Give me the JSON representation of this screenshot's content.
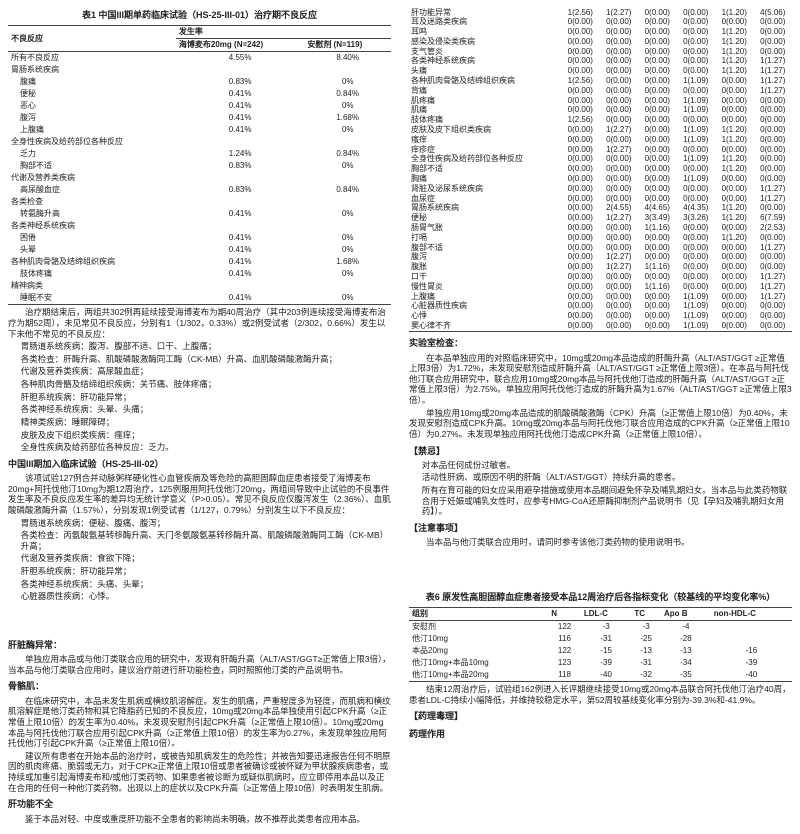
{
  "t1": {
    "title": "表1 中国III期单药临床试验（HS-25-III-01）治疗期不良反应",
    "h1": "不良反应",
    "h2": "发生率",
    "c1": "海博麦布20mg (N=242)",
    "c2": "安慰剂 (N=119)",
    "rows": [
      {
        "name": "所有不良反应",
        "ind": 0,
        "a": "4.55%",
        "b": "8.40%",
        "bold": true
      },
      {
        "name": "胃肠系统疾病",
        "ind": 0,
        "a": "",
        "b": ""
      },
      {
        "name": "腹痛",
        "ind": 1,
        "a": "0.83%",
        "b": "0%"
      },
      {
        "name": "便秘",
        "ind": 1,
        "a": "0.41%",
        "b": "0.84%"
      },
      {
        "name": "恶心",
        "ind": 1,
        "a": "0.41%",
        "b": "0%"
      },
      {
        "name": "腹泻",
        "ind": 1,
        "a": "0.41%",
        "b": "1.68%"
      },
      {
        "name": "上腹痛",
        "ind": 1,
        "a": "0.41%",
        "b": "0%"
      },
      {
        "name": "全身性疾病及给药部位各种反应",
        "ind": 0,
        "a": "",
        "b": ""
      },
      {
        "name": "乏力",
        "ind": 1,
        "a": "1.24%",
        "b": "0.84%"
      },
      {
        "name": "胸部不适",
        "ind": 1,
        "a": "0.83%",
        "b": "0%"
      },
      {
        "name": "代谢及营养类疾病",
        "ind": 0,
        "a": "",
        "b": ""
      },
      {
        "name": "高尿酸血症",
        "ind": 1,
        "a": "0.83%",
        "b": "0.84%"
      },
      {
        "name": "各类检查",
        "ind": 0,
        "a": "",
        "b": ""
      },
      {
        "name": "转氨酶升高",
        "ind": 1,
        "a": "0.41%",
        "b": "0%"
      },
      {
        "name": "各类神经系统疾病",
        "ind": 0,
        "a": "",
        "b": ""
      },
      {
        "name": "困倦",
        "ind": 1,
        "a": "0.41%",
        "b": "0%"
      },
      {
        "name": "头晕",
        "ind": 1,
        "a": "0.41%",
        "b": "0%"
      },
      {
        "name": "各种肌肉骨骼及结缔组织疾病",
        "ind": 0,
        "a": "0.41%",
        "b": "1.68%"
      },
      {
        "name": "肢体疼痛",
        "ind": 1,
        "a": "0.41%",
        "b": "0%"
      },
      {
        "name": "精神病类",
        "ind": 0,
        "a": "",
        "b": ""
      },
      {
        "name": "睡眠不安",
        "ind": 1,
        "a": "0.41%",
        "b": "0%"
      }
    ]
  },
  "para1": "治疗期结束后，两组共302例再延续接受海博麦布为期40周治疗（其中203例连续接受海博麦布治疗为期52周），未见常见不良反应，分别有1（1/302，0.33%）或2例受试者（2/302，0.66%）发生以下未他不常见的不良反应：",
  "list1": [
    "胃肠道系统疾病：腹泻、腹部不适、口干、上腹痛；",
    "各类检查：肝酶升高、肌酸磷酸激酶同工酶（CK-MB）升高、血肌酸磷酸激酶升高；",
    "代谢及营养类疾病：高尿酸血症；",
    "各种肌肉骨骼及结缔组织疾病：关节痛、肢体疼痛；",
    "肝胆系统疾病：肝功能异常；",
    "各类神经系统疾病：头晕、头痛；",
    "精神类疾病：睡眠障碍；",
    "皮肤及皮下组织类疾病：瘙痒；",
    "全身性疾病及给药部位各种反应：乏力。"
  ],
  "h02": "中国III期加入临床试验（HS-25-III-02）",
  "para2": "该项试验127例合并动脉粥样硬化性心血管疾病及等危险的高胆固醇血症患者接受了海博麦布20mg+阿托伐他汀10mg为期12周治疗，125例服用阿托伐他汀20mg，两组间导致中止试验的不良事件发生率及不良反应发生率的差异均无统计学意义（P>0.05）。常见不良反应仅腹泻发生（2.36%）、血肌酸磷酸激酶升高（1.57%），分别发现1例受试者（1/127，0.79%）分别发生以下不良反应：",
  "list2": [
    "胃肠道系统疾病：便秘、腹痛、腹泻；",
    "各类检查：丙氨酸氨基转移酶升高、天门冬氨酸氨基转移酶升高、肌酸磷酸激酶同工酶（CK-MB）升高；",
    "代谢及营养类疾病：食欲下降；",
    "肝胆系统疾病：肝功能异常；",
    "各类神经系统疾病：头痛、头晕；",
    "心脏器质性疾病：心悸。"
  ],
  "t2rows": [
    {
      "n": "肝功能异常",
      "v": [
        "1(2.56)",
        "1(2.27)",
        "0(0.00)",
        "0(0.00)",
        "1(1.20)",
        "4(5.06)"
      ]
    },
    {
      "n": "耳及迷路类疾病",
      "v": [
        "0(0.00)",
        "0(0.00)",
        "0(0.00)",
        "0(0.00)",
        "0(0.00)",
        "0(0.00)"
      ]
    },
    {
      "n": "耳鸣",
      "v": [
        "0(0.00)",
        "0(0.00)",
        "0(0.00)",
        "0(0.00)",
        "1(1.20)",
        "0(0.00)"
      ]
    },
    {
      "n": "感染及侵染类疾病",
      "v": [
        "0(0.00)",
        "0(0.00)",
        "0(0.00)",
        "0(0.00)",
        "1(1.20)",
        "0(0.00)"
      ]
    },
    {
      "n": "支气管炎",
      "v": [
        "0(0.00)",
        "0(0.00)",
        "0(0.00)",
        "0(0.00)",
        "1(1.20)",
        "0(0.00)"
      ]
    },
    {
      "n": "各类神经系统疾病",
      "v": [
        "0(0.00)",
        "0(0.00)",
        "0(0.00)",
        "0(0.00)",
        "1(1.20)",
        "1(1.27)"
      ]
    },
    {
      "n": "头痛",
      "v": [
        "0(0.00)",
        "0(0.00)",
        "0(0.00)",
        "0(0.00)",
        "1(1.20)",
        "1(1.27)"
      ]
    },
    {
      "n": "各种肌肉骨骼及结缔组织疾病",
      "v": [
        "1(2.56)",
        "0(0.00)",
        "0(0.00)",
        "1(1.09)",
        "0(0.00)",
        "1(1.27)"
      ]
    },
    {
      "n": "背痛",
      "v": [
        "0(0.00)",
        "0(0.00)",
        "0(0.00)",
        "0(0.00)",
        "0(0.00)",
        "1(1.27)"
      ]
    },
    {
      "n": "肌疼痛",
      "v": [
        "0(0.00)",
        "0(0.00)",
        "0(0.00)",
        "1(1.09)",
        "0(0.00)",
        "0(0.00)"
      ]
    },
    {
      "n": "肌痛",
      "v": [
        "0(0.00)",
        "0(0.00)",
        "0(0.00)",
        "1(1.09)",
        "0(0.00)",
        "0(0.00)"
      ]
    },
    {
      "n": "肢体疼痛",
      "v": [
        "1(2.56)",
        "0(0.00)",
        "0(0.00)",
        "0(0.00)",
        "0(0.00)",
        "0(0.00)"
      ]
    },
    {
      "n": "皮肤及皮下组织类疾病",
      "v": [
        "0(0.00)",
        "1(2.27)",
        "0(0.00)",
        "1(1.09)",
        "1(1.20)",
        "0(0.00)"
      ]
    },
    {
      "n": "瘙痒",
      "v": [
        "0(0.00)",
        "0(0.00)",
        "0(0.00)",
        "1(1.09)",
        "1(1.20)",
        "0(0.00)"
      ]
    },
    {
      "n": "痒疹症",
      "v": [
        "0(0.00)",
        "1(2.27)",
        "0(0.00)",
        "0(0.00)",
        "0(0.00)",
        "0(0.00)"
      ]
    },
    {
      "n": "全身性疾病及给药部位各种反应",
      "v": [
        "0(0.00)",
        "0(0.00)",
        "0(0.00)",
        "1(1.09)",
        "1(1.20)",
        "0(0.00)"
      ]
    },
    {
      "n": "胸部不适",
      "v": [
        "0(0.00)",
        "0(0.00)",
        "0(0.00)",
        "0(0.00)",
        "1(1.20)",
        "0(0.00)"
      ]
    },
    {
      "n": "胸痛",
      "v": [
        "0(0.00)",
        "0(0.00)",
        "0(0.00)",
        "1(1.09)",
        "0(0.00)",
        "0(0.00)"
      ]
    },
    {
      "n": "肾脏及泌尿系统疾病",
      "v": [
        "0(0.00)",
        "0(0.00)",
        "0(0.00)",
        "0(0.00)",
        "0(0.00)",
        "1(1.27)"
      ]
    },
    {
      "n": "血尿症",
      "v": [
        "0(0.00)",
        "0(0.00)",
        "0(0.00)",
        "0(0.00)",
        "0(0.00)",
        "1(1.27)"
      ]
    },
    {
      "n": "胃肠系统疾病",
      "v": [
        "0(0.00)",
        "2(4.55)",
        "4(4.65)",
        "4(4.35)",
        "1(1.20)",
        "0(0.00)"
      ]
    },
    {
      "n": "便秘",
      "v": [
        "0(0.00)",
        "1(2.27)",
        "3(3.49)",
        "3(3.26)",
        "1(1.20)",
        "6(7.59)"
      ]
    },
    {
      "n": "肠胃气胀",
      "v": [
        "0(0.00)",
        "0(0.00)",
        "1(1.16)",
        "0(0.00)",
        "0(0.00)",
        "2(2.53)"
      ]
    },
    {
      "n": "打嗝",
      "v": [
        "0(0.00)",
        "0(0.00)",
        "0(0.00)",
        "0(0.00)",
        "1(1.20)",
        "0(0.00)"
      ]
    },
    {
      "n": "腹部不适",
      "v": [
        "0(0.00)",
        "0(0.00)",
        "0(0.00)",
        "0(0.00)",
        "0(0.00)",
        "1(1.27)"
      ]
    },
    {
      "n": "腹泻",
      "v": [
        "0(0.00)",
        "1(2.27)",
        "0(0.00)",
        "0(0.00)",
        "0(0.00)",
        "0(0.00)"
      ]
    },
    {
      "n": "腹胀",
      "v": [
        "0(0.00)",
        "1(2.27)",
        "1(1.16)",
        "0(0.00)",
        "0(0.00)",
        "0(0.00)"
      ]
    },
    {
      "n": "口干",
      "v": [
        "0(0.00)",
        "0(0.00)",
        "0(0.00)",
        "0(0.00)",
        "0(0.00)",
        "1(1.27)"
      ]
    },
    {
      "n": "慢性胃炎",
      "v": [
        "0(0.00)",
        "0(0.00)",
        "1(1.16)",
        "0(0.00)",
        "0(0.00)",
        "1(1.27)"
      ]
    },
    {
      "n": "上腹痛",
      "v": [
        "0(0.00)",
        "0(0.00)",
        "0(0.00)",
        "1(1.09)",
        "0(0.00)",
        "1(1.27)"
      ]
    },
    {
      "n": "心脏器质性疾病",
      "v": [
        "0(0.00)",
        "0(0.00)",
        "0(0.00)",
        "1(1.09)",
        "0(0.00)",
        "0(0.00)"
      ]
    },
    {
      "n": "心悸",
      "v": [
        "0(0.00)",
        "0(0.00)",
        "0(0.00)",
        "1(1.09)",
        "0(0.00)",
        "0(0.00)"
      ]
    },
    {
      "n": "窦心律不齐",
      "v": [
        "0(0.00)",
        "0(0.00)",
        "0(0.00)",
        "1(1.09)",
        "0(0.00)",
        "0(0.00)"
      ]
    }
  ],
  "hLab": "实验室检查：",
  "paraLab1": "在本品单独应用的对照临床研究中，10mg或20mg本品造成的肝酶升高（ALT/AST/GGT ≥正常值上限3倍）为1.72%，未发现安慰剂造成肝酶升高（ALT/AST/GGT ≥正常值上限3倍）。在本品与阿托伐他汀联合应用研究中，联合应用10mg或20mg本品与阿托伐他汀造成的肝酶升高（ALT/AST/GGT ≥正常值上限3倍）为2.75%。单独应用阿托伐他汀造成的肝酶升高为1.67%（ALT/AST/GGT ≥正常值上限3倍）。",
  "paraLab2": "单独应用10mg或20mg本品造成的肌酸磷酸激酶（CPK）升高（≥正常值上限10倍）为0.40%，未发现安慰剂造成CPK升高。10mg或20mg本品与阿托伐他汀联合应用造成的CPK升高（≥正常值上限10倍）为0.27%。未发现单独应用阿托伐他汀造成CPK升高（≥正常值上限10倍）。",
  "hTaboo": "【禁忌】",
  "taboo": [
    "对本品任何成份过敏者。",
    "活动性肝病、或原因不明的肝酶（ALT/AST/GGT）持续升高的患者。",
    "所有在育可能的妇女应采用避孕措施或使用本品期间避免怀孕及哺乳期妇女。当本品与此类药物联合用于妊娠或哺乳女性时，应参考HMG-CoA还原酶抑制剂产品说明书（见【孕妇及哺乳期妇女用药】）。"
  ],
  "hAtt": "【注意事项】",
  "att": "当本品与他汀类联合应用时，请同时参考该他汀类药物的使用说明书。",
  "hRhabdo": "肝脏酶异常：",
  "rhabdo": "单独应用本品或与他汀类联合应用的研究中，发现有肝酶升高（ALT/AST/GGT≥正常值上限3倍），当本品与他汀类联合应用时，建议治疗前进行肝功能检查，同时照照他汀类的产品说明书。",
  "hMus": "骨骼肌：",
  "mus1": "在临床研究中，本品未发生肌病或横纹肌溶解症。发生的肌痛，严重程度多为轻度，而肌病和横纹肌溶解症是他汀类药物和其它降脂药已知的不良反应，10mg或20mg本品单独使用引起CPK升高（≥正常值上限10倍）的发生率为0.40%，未发现安慰剂引起CPK升高（≥正常值上限10倍）。10mg或20mg本品与阿托伐他汀联合应用引起CPK升高（≥正常值上限10倍）的发生率为0.27%，未发现单独应用阿托伐他汀引起CPK升高（≥正常值上限10倍）。",
  "mus2": "建议所有患者在开始本品的治疗时，或被告知肌病发生的危险性；并被告知要迅速报告任何不明原因的肌肉疼痛、脆弱或无力，对于CPK≥正常值上限10倍或患者被确诊或被怀疑为甲状腺疾病患者，或持续或加重引起海博麦布和/或他汀类药物、如果患者被诊断为或疑似肌病时，应立即停用本品以及正在合用的任何一种他汀类药物。出现以上的症状以及CPK升高（≥正常值上限10倍）时表明发生肌病。",
  "hLiver": "肝功能不全",
  "liver": "鉴于本品对轻、中度或重度肝功能不全患者的影响尚未明确，故不推荐此类患者应用本品。",
  "t6": {
    "title": "表6 原发性高胆固醇血症患者接受本品12周治疗后各指标变化（较基线的平均变化率%）",
    "cols": [
      "组别",
      "N",
      "LDL-C",
      "TC",
      "Apo B",
      "non-HDL-C"
    ],
    "rows": [
      [
        "安慰剂",
        "122",
        "-3",
        "-3",
        "-4",
        ""
      ],
      [
        "他汀10mg",
        "116",
        "-31",
        "-25",
        "-28",
        ""
      ],
      [
        "本品20mg",
        "122",
        "-15",
        "-13",
        "-13",
        "-16"
      ],
      [
        "他汀10mg+本品10mg",
        "123",
        "-39",
        "-31",
        "-34",
        "-39"
      ],
      [
        "他汀10mg+本品20mg",
        "118",
        "-40",
        "-32",
        "-35",
        "-40"
      ]
    ]
  },
  "para6": "结束12周治疗后，试验组162例进入长评期继续接受10mg或20mg本品联合阿托伐他汀治疗40周，患者LDL-C持续小幅降低，并维持较稳定水平，第52周较基线变化率分别为-39.3%和-41.9%。",
  "hPharm": "【药理毒理】",
  "hPharm2": "药理作用"
}
